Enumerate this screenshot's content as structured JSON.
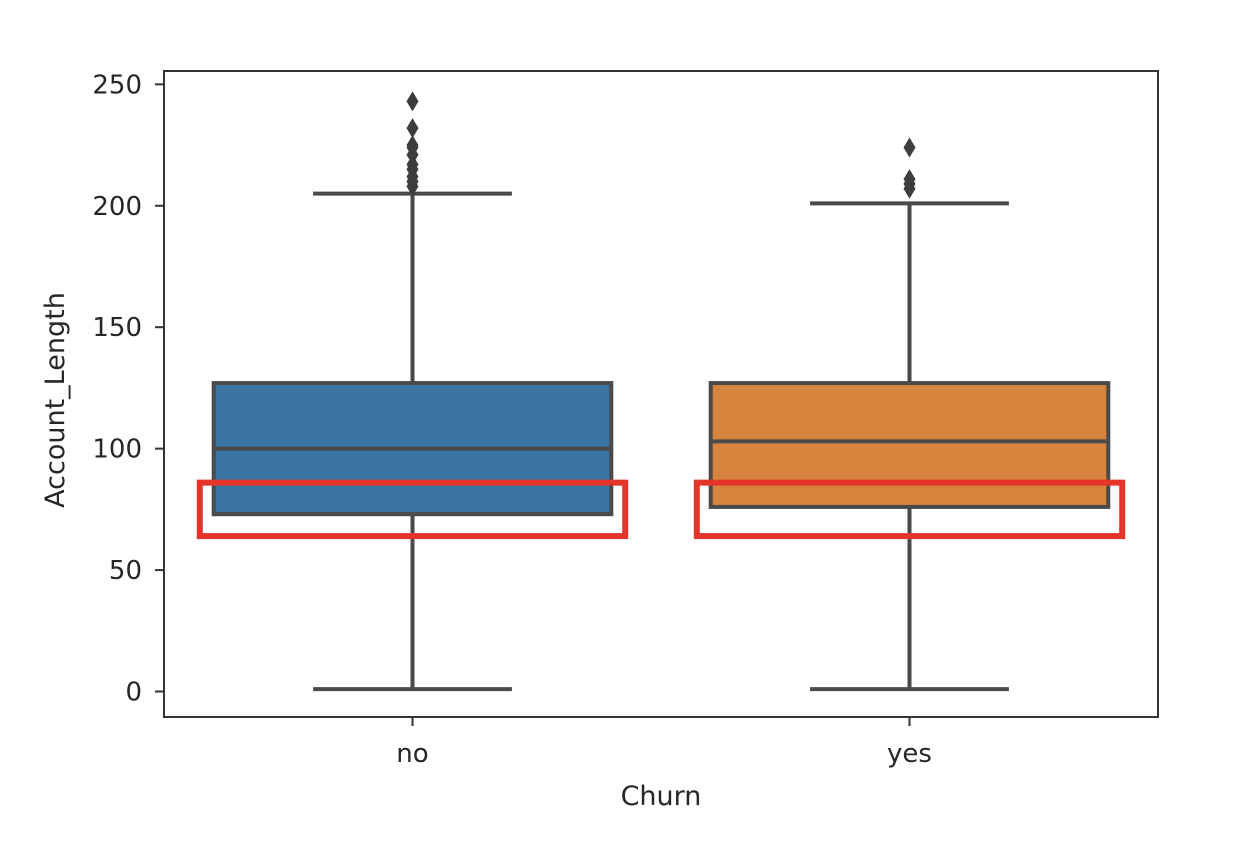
{
  "chart_data": {
    "type": "box",
    "xlabel": "Churn",
    "ylabel": "Account_Length",
    "ylim": [
      -10.5,
      255.5
    ],
    "yticks": [
      0,
      50,
      100,
      150,
      200,
      250
    ],
    "ytick_labels": [
      "0",
      "50",
      "100",
      "150",
      "200",
      "250"
    ],
    "categories": [
      "no",
      "yes"
    ],
    "grid": false,
    "legend": "none",
    "boxes": [
      {
        "category": "no",
        "color": "#3b75a3",
        "whisker_low": 1,
        "q1": 73,
        "median": 100,
        "q3": 127,
        "whisker_high": 205,
        "outliers": [
          208,
          210,
          212,
          215,
          217,
          221,
          224,
          225,
          232,
          243
        ]
      },
      {
        "category": "yes",
        "color": "#d6843e",
        "whisker_low": 1,
        "q1": 76,
        "median": 103,
        "q3": 127,
        "whisker_high": 201,
        "outliers": [
          207,
          209,
          211,
          224
        ]
      }
    ],
    "highlight_boxes": [
      {
        "category": "no",
        "y_range": [
          64,
          86
        ],
        "color": "#e5352b"
      },
      {
        "category": "yes",
        "y_range": [
          64,
          86
        ],
        "color": "#e5352b"
      }
    ]
  }
}
